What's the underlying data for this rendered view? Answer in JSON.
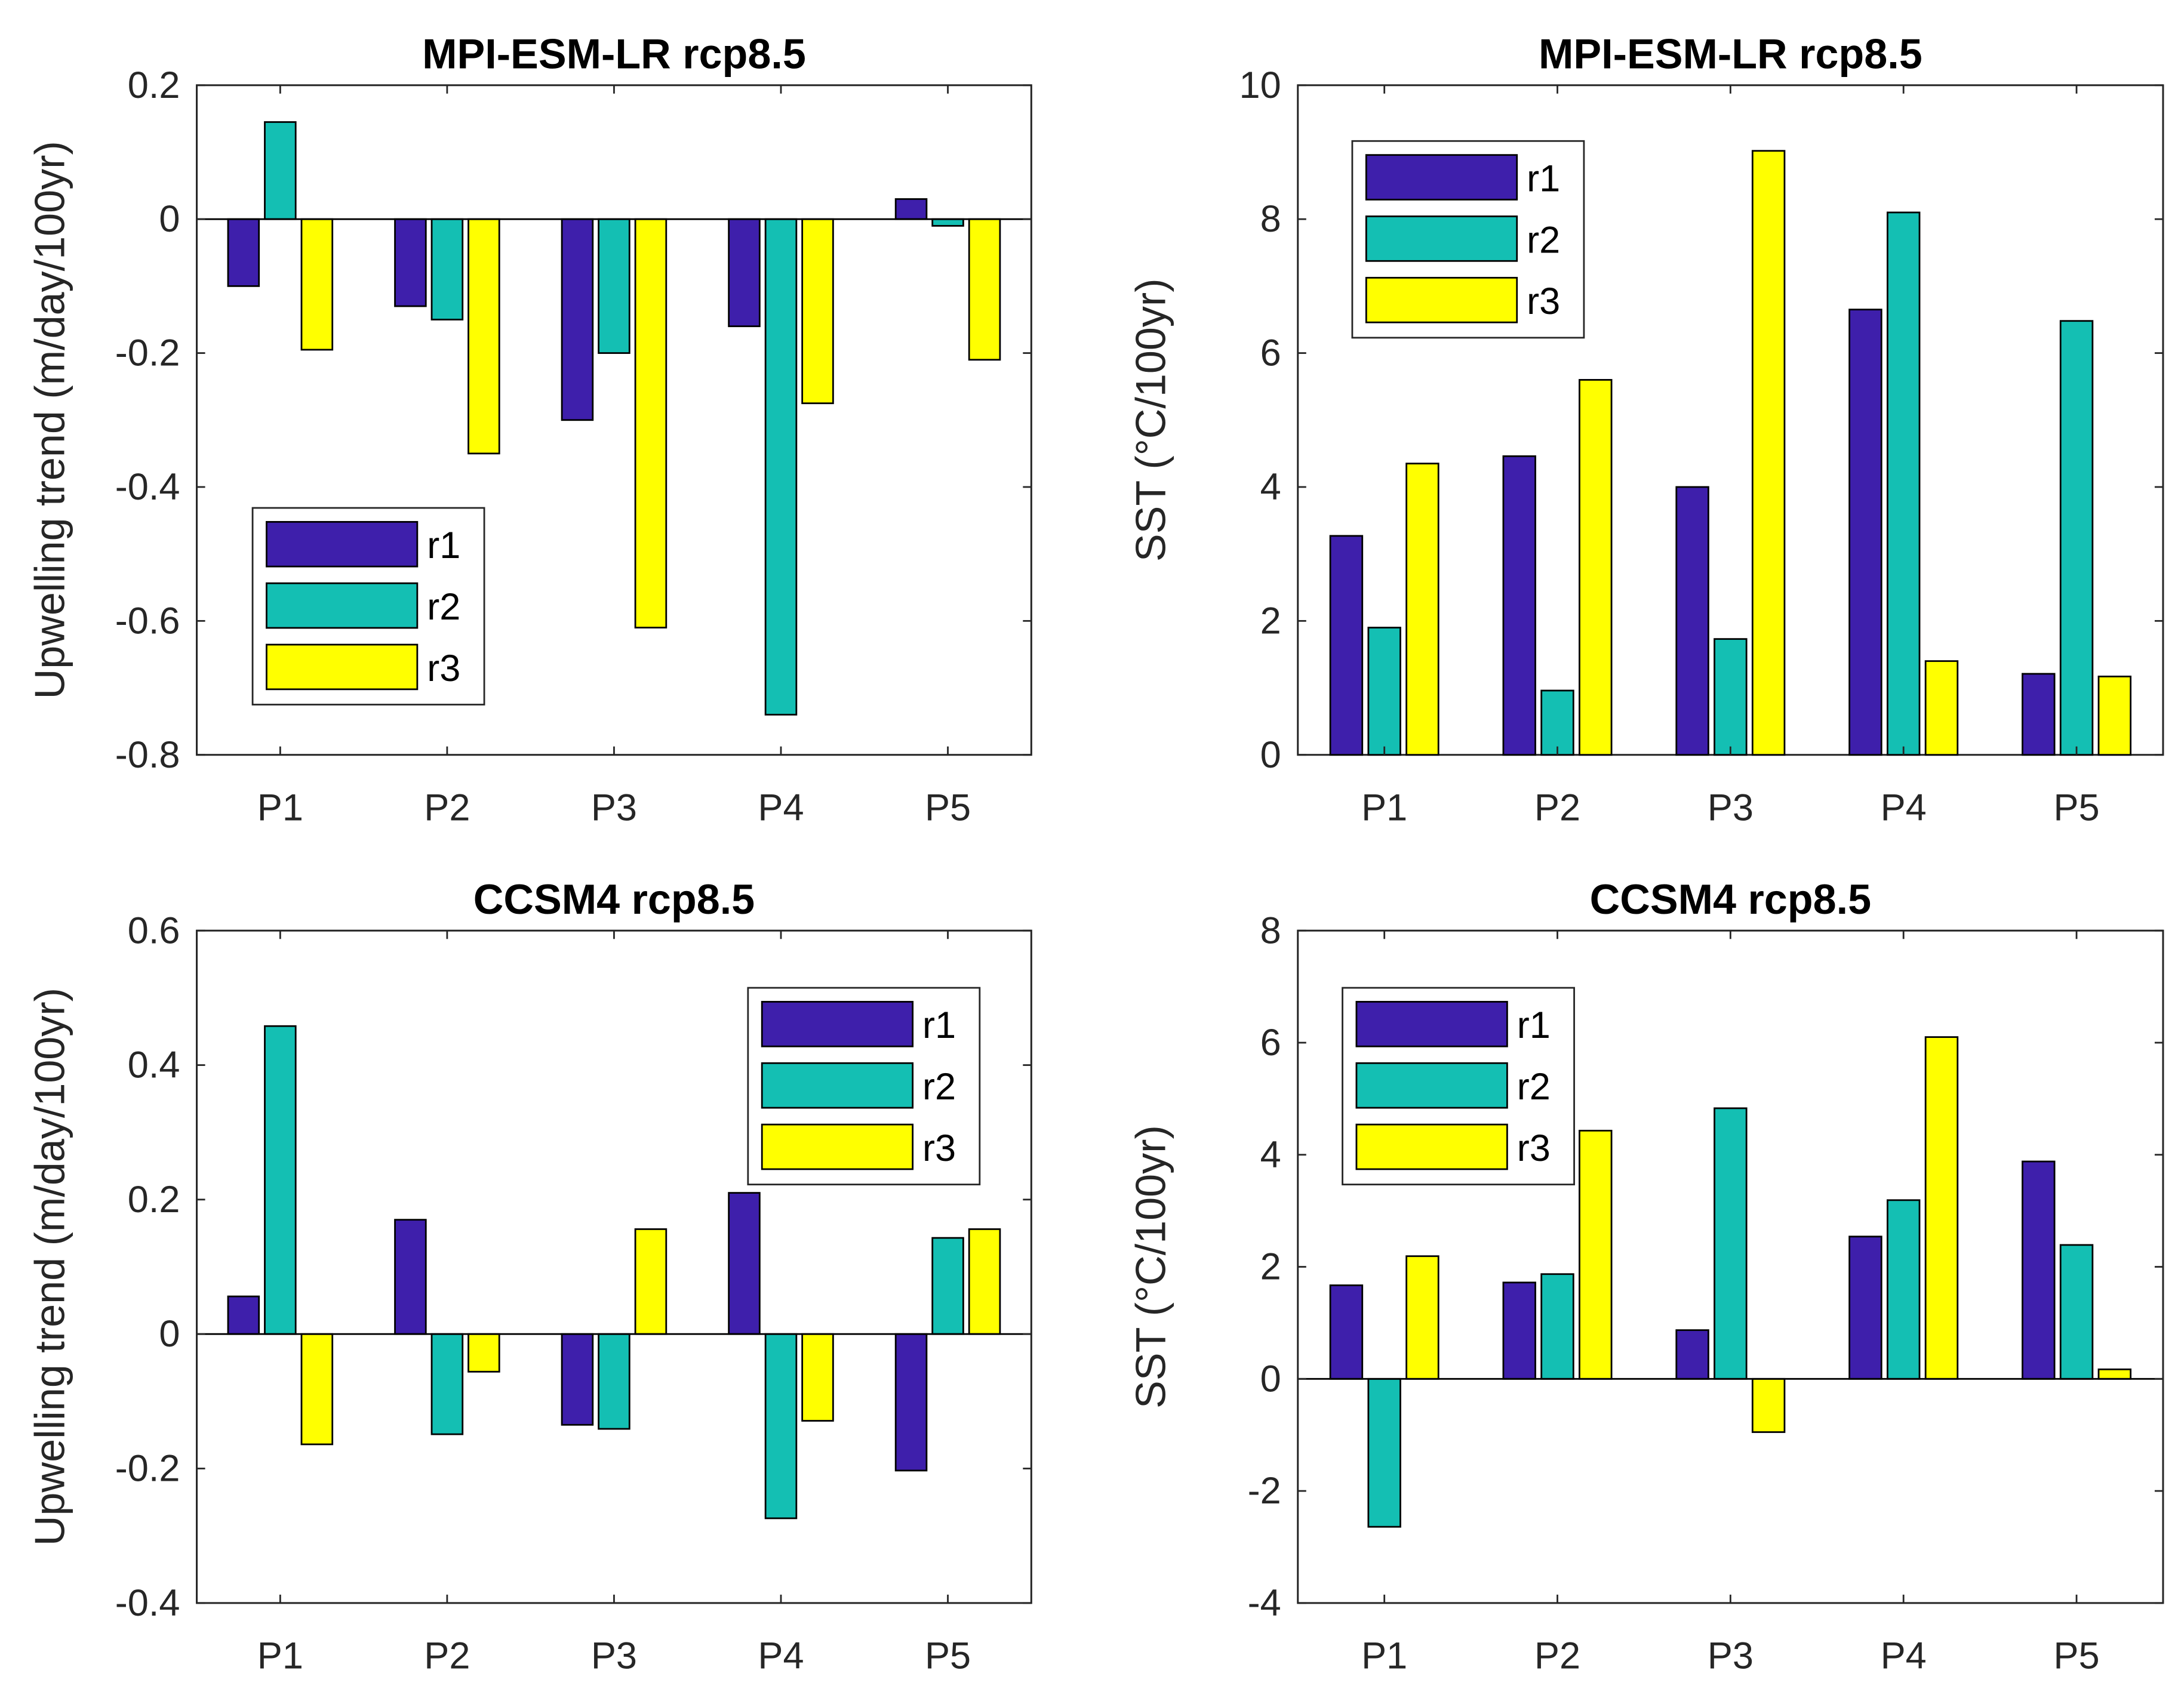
{
  "colors": {
    "r1": "#3e1fab",
    "r2": "#14bfb3",
    "r3": "#ffff00"
  },
  "chart_data": [
    {
      "type": "bar",
      "title": "MPI-ESM-LR rcp8.5",
      "ylabel": "Upwelling trend (m/day/100yr)",
      "xlabel": "",
      "categories": [
        "P1",
        "P2",
        "P3",
        "P4",
        "P5"
      ],
      "ylim": [
        -0.8,
        0.2
      ],
      "yticks": [
        "-0.8",
        "-0.6",
        "-0.4",
        "-0.2",
        "0",
        "0.2"
      ],
      "legend": "bottom-left",
      "series": [
        {
          "name": "r1",
          "values": [
            -0.1,
            -0.13,
            -0.3,
            -0.16,
            0.03
          ]
        },
        {
          "name": "r2",
          "values": [
            0.145,
            -0.15,
            -0.2,
            -0.74,
            -0.01
          ]
        },
        {
          "name": "r3",
          "values": [
            -0.195,
            -0.35,
            -0.61,
            -0.275,
            -0.21
          ]
        }
      ]
    },
    {
      "type": "bar",
      "title": "MPI-ESM-LR rcp8.5",
      "ylabel": "SST (°C/100yr)",
      "xlabel": "",
      "categories": [
        "P1",
        "P2",
        "P3",
        "P4",
        "P5"
      ],
      "ylim": [
        0,
        10
      ],
      "yticks": [
        "0",
        "2",
        "4",
        "6",
        "8",
        "10"
      ],
      "legend": "top-left",
      "series": [
        {
          "name": "r1",
          "values": [
            3.27,
            4.46,
            4.0,
            6.65,
            1.21
          ]
        },
        {
          "name": "r2",
          "values": [
            1.9,
            0.96,
            1.73,
            8.1,
            6.48
          ]
        },
        {
          "name": "r3",
          "values": [
            4.35,
            5.6,
            9.02,
            1.4,
            1.17
          ]
        }
      ]
    },
    {
      "type": "bar",
      "title": "CCSM4 rcp8.5",
      "ylabel": "Upwelling trend (m/day/100yr)",
      "xlabel": "",
      "categories": [
        "P1",
        "P2",
        "P3",
        "P4",
        "P5"
      ],
      "ylim": [
        -0.4,
        0.6
      ],
      "yticks": [
        "-0.4",
        "-0.2",
        "0",
        "0.2",
        "0.4",
        "0.6"
      ],
      "legend": "top-right",
      "series": [
        {
          "name": "r1",
          "values": [
            0.056,
            0.17,
            -0.135,
            0.21,
            -0.203
          ]
        },
        {
          "name": "r2",
          "values": [
            0.458,
            -0.149,
            -0.141,
            -0.274,
            0.143
          ]
        },
        {
          "name": "r3",
          "values": [
            -0.164,
            -0.056,
            0.156,
            -0.129,
            0.156
          ]
        }
      ]
    },
    {
      "type": "bar",
      "title": "CCSM4 rcp8.5",
      "ylabel": "SST (°C/100yr)",
      "xlabel": "",
      "categories": [
        "P1",
        "P2",
        "P3",
        "P4",
        "P5"
      ],
      "ylim": [
        -4,
        8
      ],
      "yticks": [
        "-4",
        "-2",
        "0",
        "2",
        "4",
        "6",
        "8"
      ],
      "legend": "top-left",
      "series": [
        {
          "name": "r1",
          "values": [
            1.67,
            1.72,
            0.87,
            2.54,
            3.88
          ]
        },
        {
          "name": "r2",
          "values": [
            -2.64,
            1.87,
            4.83,
            3.19,
            2.39
          ]
        },
        {
          "name": "r3",
          "values": [
            2.19,
            4.43,
            -0.95,
            6.1,
            0.17
          ]
        }
      ]
    }
  ]
}
